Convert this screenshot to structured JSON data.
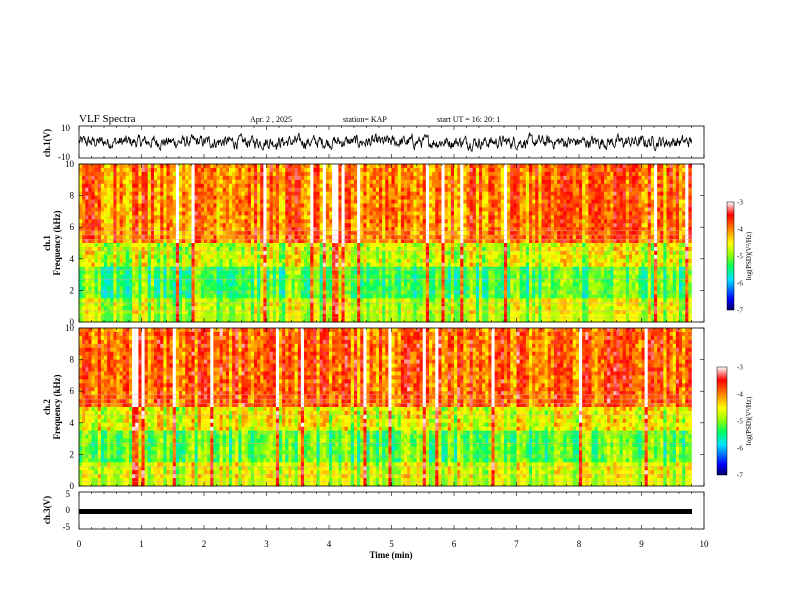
{
  "header": {
    "title": "VLF Spectra",
    "date": "Apr. 2 , 2025",
    "station": "station= KAP",
    "start": "start UT =  16: 20: 1"
  },
  "chart_data": [
    {
      "type": "line",
      "panel": "ch1-waveform",
      "ylabel": "ch.1(V)",
      "ylim": [
        -10,
        10
      ],
      "yticks": [
        "10",
        "-10"
      ],
      "xlim": [
        0,
        10
      ],
      "approx_range": [
        -5,
        5
      ],
      "color": "#000000"
    },
    {
      "type": "heatmap",
      "panel": "ch1-spectrogram",
      "ylabel": "ch.1\nFrequency (kHz)",
      "ylim": [
        0,
        10
      ],
      "yticks": [
        "0",
        "2",
        "4",
        "6",
        "8",
        "10"
      ],
      "xlim": [
        0,
        9.8
      ],
      "colorbar": {
        "label": "log(PSD)(V²/Hz)",
        "range": [
          -7,
          -3
        ],
        "ticks": [
          "-3",
          "-4",
          "-5",
          "-6",
          "-7"
        ]
      }
    },
    {
      "type": "heatmap",
      "panel": "ch2-spectrogram",
      "ylabel": "ch.2\nFrequency (kHz)",
      "ylim": [
        0,
        10
      ],
      "yticks": [
        "0",
        "2",
        "4",
        "6",
        "8",
        "10"
      ],
      "xlim": [
        0,
        9.8
      ],
      "colorbar": {
        "label": "log(PSD)(V²/Hz)",
        "range": [
          -7,
          -3
        ],
        "ticks": [
          "-3",
          "-4",
          "-5",
          "-6",
          "-7"
        ]
      }
    },
    {
      "type": "line",
      "panel": "ch3-waveform",
      "ylabel": "ch.3(V)",
      "ylim": [
        -5,
        5
      ],
      "yticks": [
        "5",
        "0",
        "-5"
      ],
      "xlim": [
        0,
        10
      ],
      "approx_level": -1,
      "color": "#000000"
    }
  ],
  "xaxis": {
    "label": "Time (min)",
    "ticks": [
      "0",
      "1",
      "2",
      "3",
      "4",
      "5",
      "6",
      "7",
      "8",
      "9",
      "10"
    ],
    "range": [
      0,
      10
    ]
  },
  "colors": {
    "colormap": [
      "#000080",
      "#0000ff",
      "#00c8ff",
      "#00ff80",
      "#80ff00",
      "#ffff00",
      "#ff8000",
      "#ff0000",
      "#ffffff"
    ]
  }
}
